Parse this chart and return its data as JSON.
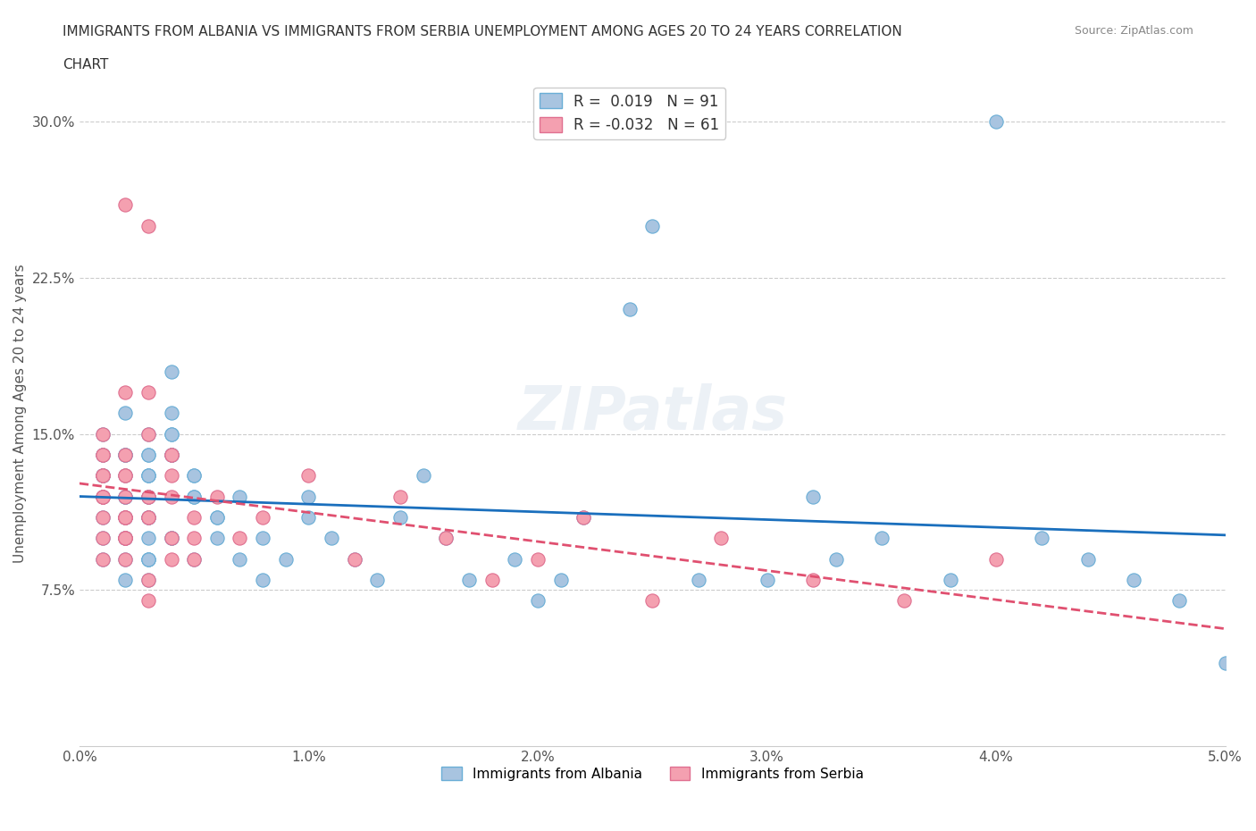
{
  "title_line1": "IMMIGRANTS FROM ALBANIA VS IMMIGRANTS FROM SERBIA UNEMPLOYMENT AMONG AGES 20 TO 24 YEARS CORRELATION",
  "title_line2": "CHART",
  "source": "Source: ZipAtlas.com",
  "xlabel": "",
  "ylabel": "Unemployment Among Ages 20 to 24 years",
  "xlim": [
    0.0,
    0.05
  ],
  "ylim": [
    0.0,
    0.32
  ],
  "yticks": [
    0.0,
    0.075,
    0.15,
    0.225,
    0.3
  ],
  "ytick_labels": [
    "",
    "7.5%",
    "15.0%",
    "22.5%",
    "30.0%"
  ],
  "xticks": [
    0.0,
    0.01,
    0.02,
    0.03,
    0.04,
    0.05
  ],
  "xtick_labels": [
    "0.0%",
    "1.0%",
    "2.0%",
    "3.0%",
    "4.0%",
    "5.0%"
  ],
  "albania_color": "#a8c4e0",
  "albania_edge": "#6aaed6",
  "serbia_color": "#f4a0b0",
  "serbia_edge": "#e07090",
  "trend_albania_color": "#1a6fbd",
  "trend_serbia_color": "#e05070",
  "R_albania": 0.019,
  "N_albania": 91,
  "R_serbia": -0.032,
  "N_serbia": 61,
  "legend_label_albania": "Immigrants from Albania",
  "legend_label_serbia": "Immigrants from Serbia",
  "background_color": "#ffffff",
  "watermark": "ZIPatlas",
  "albania_x": [
    0.002,
    0.001,
    0.001,
    0.002,
    0.002,
    0.001,
    0.001,
    0.001,
    0.002,
    0.001,
    0.003,
    0.002,
    0.001,
    0.002,
    0.003,
    0.003,
    0.002,
    0.003,
    0.002,
    0.001,
    0.002,
    0.002,
    0.001,
    0.002,
    0.004,
    0.003,
    0.003,
    0.004,
    0.003,
    0.002,
    0.003,
    0.002,
    0.004,
    0.003,
    0.004,
    0.003,
    0.004,
    0.003,
    0.005,
    0.004,
    0.003,
    0.004,
    0.003,
    0.005,
    0.004,
    0.003,
    0.005,
    0.004,
    0.006,
    0.005,
    0.006,
    0.005,
    0.007,
    0.006,
    0.008,
    0.007,
    0.008,
    0.009,
    0.01,
    0.01,
    0.011,
    0.012,
    0.013,
    0.014,
    0.015,
    0.016,
    0.017,
    0.019,
    0.02,
    0.021,
    0.022,
    0.024,
    0.025,
    0.027,
    0.03,
    0.032,
    0.033,
    0.035,
    0.038,
    0.04,
    0.042,
    0.044,
    0.046,
    0.048,
    0.05,
    0.001,
    0.001,
    0.002,
    0.002,
    0.003,
    0.003
  ],
  "albania_y": [
    0.12,
    0.14,
    0.13,
    0.1,
    0.11,
    0.15,
    0.09,
    0.13,
    0.14,
    0.11,
    0.12,
    0.14,
    0.1,
    0.09,
    0.13,
    0.11,
    0.12,
    0.15,
    0.08,
    0.13,
    0.14,
    0.1,
    0.12,
    0.16,
    0.18,
    0.14,
    0.13,
    0.15,
    0.1,
    0.12,
    0.09,
    0.13,
    0.16,
    0.11,
    0.14,
    0.12,
    0.1,
    0.09,
    0.13,
    0.15,
    0.11,
    0.14,
    0.08,
    0.12,
    0.1,
    0.13,
    0.09,
    0.14,
    0.11,
    0.12,
    0.1,
    0.13,
    0.09,
    0.11,
    0.08,
    0.12,
    0.1,
    0.09,
    0.11,
    0.12,
    0.1,
    0.09,
    0.08,
    0.11,
    0.13,
    0.1,
    0.08,
    0.09,
    0.07,
    0.08,
    0.11,
    0.21,
    0.25,
    0.08,
    0.08,
    0.12,
    0.09,
    0.1,
    0.08,
    0.3,
    0.1,
    0.09,
    0.08,
    0.07,
    0.04,
    0.13,
    0.14,
    0.11,
    0.1,
    0.14,
    0.09
  ],
  "serbia_x": [
    0.001,
    0.001,
    0.001,
    0.002,
    0.001,
    0.001,
    0.002,
    0.001,
    0.002,
    0.001,
    0.002,
    0.002,
    0.001,
    0.001,
    0.002,
    0.003,
    0.002,
    0.003,
    0.002,
    0.003,
    0.003,
    0.004,
    0.003,
    0.004,
    0.004,
    0.005,
    0.004,
    0.005,
    0.005,
    0.006,
    0.007,
    0.008,
    0.01,
    0.012,
    0.014,
    0.016,
    0.018,
    0.02,
    0.022,
    0.025,
    0.028,
    0.032,
    0.036,
    0.04,
    0.001,
    0.001,
    0.002,
    0.002,
    0.002,
    0.003,
    0.003,
    0.004,
    0.004,
    0.003,
    0.002,
    0.002,
    0.001,
    0.001,
    0.002,
    0.002,
    0.003
  ],
  "serbia_y": [
    0.12,
    0.1,
    0.13,
    0.11,
    0.09,
    0.14,
    0.1,
    0.12,
    0.13,
    0.11,
    0.1,
    0.12,
    0.14,
    0.15,
    0.26,
    0.25,
    0.17,
    0.17,
    0.13,
    0.15,
    0.12,
    0.14,
    0.11,
    0.13,
    0.12,
    0.1,
    0.14,
    0.11,
    0.09,
    0.12,
    0.1,
    0.11,
    0.13,
    0.09,
    0.12,
    0.1,
    0.08,
    0.09,
    0.11,
    0.07,
    0.1,
    0.08,
    0.07,
    0.09,
    0.13,
    0.12,
    0.11,
    0.1,
    0.09,
    0.12,
    0.11,
    0.1,
    0.09,
    0.08,
    0.1,
    0.11,
    0.13,
    0.12,
    0.14,
    0.11,
    0.07
  ]
}
